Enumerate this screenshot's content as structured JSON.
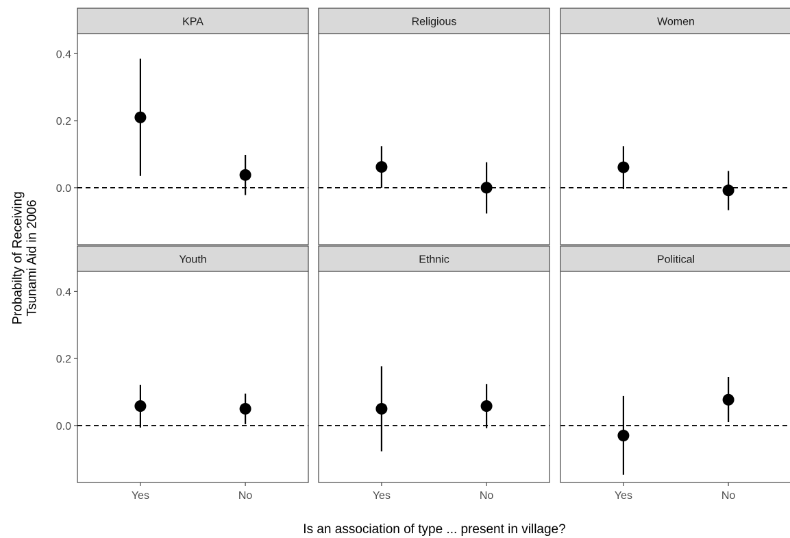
{
  "chart_data": {
    "type": "faceted-pointrange",
    "xlabel": "Is an association of type ... present in village?",
    "ylabel": "Probabilty of Receiving Tsunami Aid in 2006",
    "ylabel_lines": [
      "Probabilty of Receiving",
      "Tsunami Aid in 2006"
    ],
    "categories": [
      "Yes",
      "No"
    ],
    "ylim": [
      -0.17,
      0.46
    ],
    "yticks": [
      0.0,
      0.2,
      0.4
    ],
    "ytick_labels": [
      "0.0",
      "0.2",
      "0.4"
    ],
    "reference_line": {
      "y": 0.0,
      "style": "dashed"
    },
    "grid": false,
    "facet_layout": {
      "rows": 2,
      "cols": 3
    },
    "facets": [
      {
        "name": "KPA",
        "points": [
          {
            "x": "Yes",
            "estimate": 0.21,
            "lower": 0.035,
            "upper": 0.385
          },
          {
            "x": "No",
            "estimate": 0.038,
            "lower": -0.022,
            "upper": 0.098
          }
        ]
      },
      {
        "name": "Religious",
        "points": [
          {
            "x": "Yes",
            "estimate": 0.062,
            "lower": 0.0,
            "upper": 0.124
          },
          {
            "x": "No",
            "estimate": 0.0,
            "lower": -0.077,
            "upper": 0.076
          }
        ]
      },
      {
        "name": "Women",
        "points": [
          {
            "x": "Yes",
            "estimate": 0.061,
            "lower": -0.004,
            "upper": 0.124
          },
          {
            "x": "No",
            "estimate": -0.008,
            "lower": -0.067,
            "upper": 0.05
          }
        ]
      },
      {
        "name": "Youth",
        "points": [
          {
            "x": "Yes",
            "estimate": 0.058,
            "lower": -0.006,
            "upper": 0.121
          },
          {
            "x": "No",
            "estimate": 0.05,
            "lower": 0.004,
            "upper": 0.095
          }
        ]
      },
      {
        "name": "Ethnic",
        "points": [
          {
            "x": "Yes",
            "estimate": 0.05,
            "lower": -0.077,
            "upper": 0.177
          },
          {
            "x": "No",
            "estimate": 0.058,
            "lower": -0.008,
            "upper": 0.124
          }
        ]
      },
      {
        "name": "Political",
        "points": [
          {
            "x": "Yes",
            "estimate": -0.03,
            "lower": -0.147,
            "upper": 0.088
          },
          {
            "x": "No",
            "estimate": 0.077,
            "lower": 0.01,
            "upper": 0.145
          }
        ]
      }
    ]
  }
}
